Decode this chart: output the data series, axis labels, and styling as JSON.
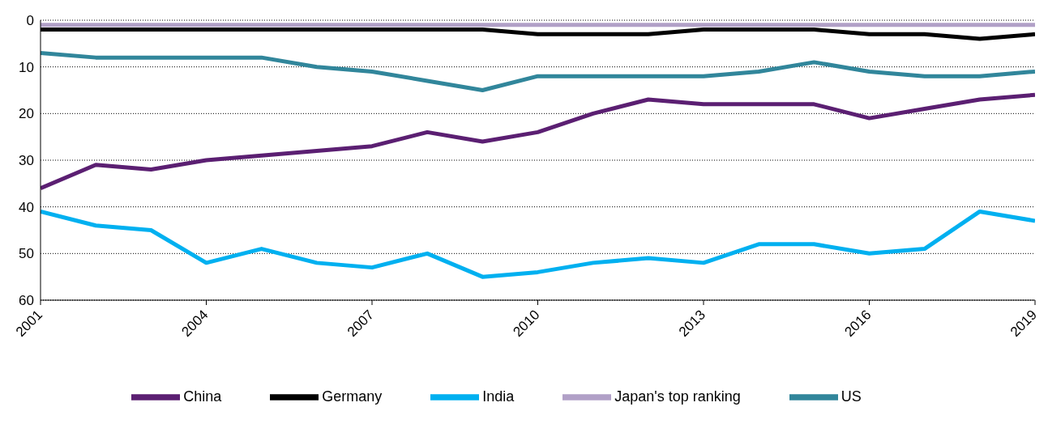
{
  "chart_data": {
    "type": "line",
    "x": [
      2001,
      2002,
      2003,
      2004,
      2005,
      2006,
      2007,
      2008,
      2009,
      2010,
      2011,
      2012,
      2013,
      2014,
      2015,
      2016,
      2017,
      2018,
      2019
    ],
    "series": [
      {
        "name": "China",
        "color": "#5b1f72",
        "values": [
          36,
          31,
          32,
          30,
          29,
          28,
          27,
          24,
          26,
          24,
          20,
          17,
          18,
          18,
          18,
          21,
          19,
          17,
          16
        ]
      },
      {
        "name": "US",
        "color": "#31869b",
        "values": [
          7,
          8,
          8,
          8,
          8,
          10,
          11,
          13,
          15,
          12,
          12,
          12,
          12,
          11,
          9,
          11,
          12,
          12,
          11
        ]
      },
      {
        "name": "Germany",
        "color": "#000000",
        "values": [
          2,
          2,
          2,
          2,
          2,
          2,
          2,
          2,
          2,
          3,
          3,
          3,
          2,
          2,
          2,
          3,
          3,
          4,
          3
        ]
      },
      {
        "name": "India",
        "color": "#00b0f0",
        "values": [
          41,
          44,
          45,
          52,
          49,
          52,
          53,
          50,
          55,
          54,
          52,
          51,
          52,
          48,
          48,
          50,
          49,
          41,
          43
        ]
      },
      {
        "name": "Japan's top ranking",
        "color": "#b1a0c7",
        "values": [
          1,
          1,
          1,
          1,
          1,
          1,
          1,
          1,
          1,
          1,
          1,
          1,
          1,
          1,
          1,
          1,
          1,
          1,
          1
        ]
      }
    ],
    "xlim": [
      2001,
      2019
    ],
    "xticks": [
      2001,
      2004,
      2007,
      2010,
      2013,
      2016,
      2019
    ],
    "ylim": [
      60,
      0
    ],
    "yticks": [
      0,
      10,
      20,
      30,
      40,
      50,
      60
    ],
    "grid": "y",
    "legend": "bottom",
    "marker": "none",
    "line_style": "solid"
  }
}
